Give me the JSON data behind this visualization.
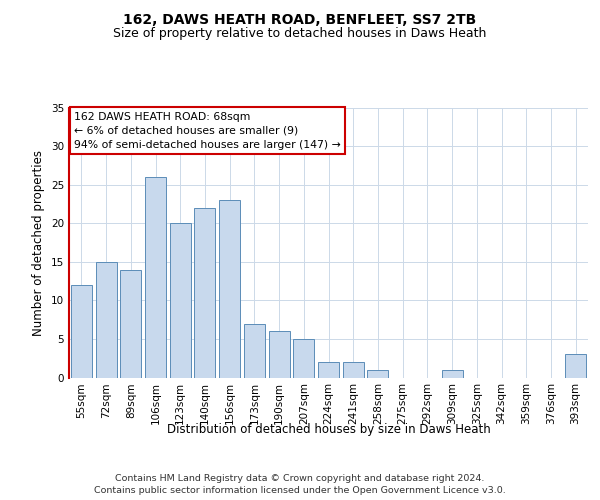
{
  "title": "162, DAWS HEATH ROAD, BENFLEET, SS7 2TB",
  "subtitle": "Size of property relative to detached houses in Daws Heath",
  "xlabel": "Distribution of detached houses by size in Daws Heath",
  "ylabel": "Number of detached properties",
  "categories": [
    "55sqm",
    "72sqm",
    "89sqm",
    "106sqm",
    "123sqm",
    "140sqm",
    "156sqm",
    "173sqm",
    "190sqm",
    "207sqm",
    "224sqm",
    "241sqm",
    "258sqm",
    "275sqm",
    "292sqm",
    "309sqm",
    "325sqm",
    "342sqm",
    "359sqm",
    "376sqm",
    "393sqm"
  ],
  "values": [
    12,
    15,
    14,
    26,
    20,
    22,
    23,
    7,
    6,
    5,
    2,
    2,
    1,
    0,
    0,
    1,
    0,
    0,
    0,
    0,
    3
  ],
  "bar_color": "#c8d9ed",
  "bar_edge_color": "#5b8db8",
  "highlight_line_color": "#cc0000",
  "ylim": [
    0,
    35
  ],
  "yticks": [
    0,
    5,
    10,
    15,
    20,
    25,
    30,
    35
  ],
  "annotation_text": "162 DAWS HEATH ROAD: 68sqm\n← 6% of detached houses are smaller (9)\n94% of semi-detached houses are larger (147) →",
  "annotation_box_color": "#ffffff",
  "annotation_box_edge_color": "#cc0000",
  "footer_text": "Contains HM Land Registry data © Crown copyright and database right 2024.\nContains public sector information licensed under the Open Government Licence v3.0.",
  "background_color": "#ffffff",
  "grid_color": "#ccd9e8",
  "title_fontsize": 10,
  "subtitle_fontsize": 9,
  "axis_label_fontsize": 8.5,
  "tick_fontsize": 7.5,
  "footer_fontsize": 6.8,
  "annot_fontsize": 7.8
}
